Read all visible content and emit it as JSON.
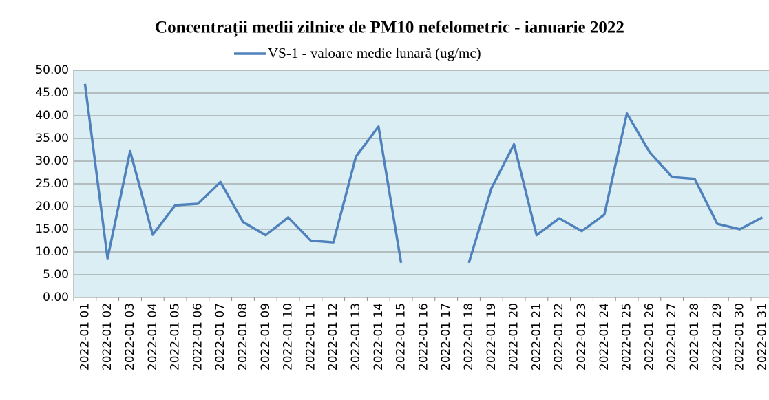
{
  "chart_data": {
    "type": "line",
    "title": "Concentrații  medii zilnice de PM10 nefelometric - ianuarie 2022",
    "categories": [
      "2022-01 01",
      "2022-01 02",
      "2022-01 03",
      "2022-01 04",
      "2022-01 05",
      "2022-01 06",
      "2022-01 07",
      "2022-01 08",
      "2022-01 09",
      "2022-01 10",
      "2022-01 11",
      "2022-01 12",
      "2022-01 13",
      "2022-01 14",
      "2022-01 15",
      "2022-01 16",
      "2022-01 17",
      "2022-01 18",
      "2022-01 19",
      "2022-01 20",
      "2022-01 21",
      "2022-01 22",
      "2022-01 23",
      "2022-01 24",
      "2022-01 25",
      "2022-01 26",
      "2022-01 27",
      "2022-01 28",
      "2022-01 29",
      "2022-01 30",
      "2022-01 31"
    ],
    "series": [
      {
        "name": "VS-1 - valoare medie lunară (ug/mc)",
        "color": "#4f81bd",
        "values": [
          47.0,
          8.6,
          32.2,
          13.8,
          20.3,
          20.6,
          25.4,
          16.6,
          13.7,
          17.6,
          12.5,
          12.1,
          31.0,
          37.6,
          7.6,
          null,
          null,
          7.6,
          24.0,
          33.7,
          13.7,
          17.4,
          14.6,
          18.2,
          40.5,
          32.0,
          26.5,
          26.1,
          16.2,
          15.0,
          17.6
        ]
      }
    ],
    "ylim": [
      0,
      50
    ],
    "yticks": [
      {
        "value": 0,
        "label": "0.00"
      },
      {
        "value": 5,
        "label": "5.00"
      },
      {
        "value": 10,
        "label": "10.00"
      },
      {
        "value": 15,
        "label": "15.00"
      },
      {
        "value": 20,
        "label": "20.00"
      },
      {
        "value": 25,
        "label": "25.00"
      },
      {
        "value": 30,
        "label": "30.00"
      },
      {
        "value": 35,
        "label": "35.00"
      },
      {
        "value": 40,
        "label": "40.00"
      },
      {
        "value": 45,
        "label": "45.00"
      },
      {
        "value": 50,
        "label": "50.00"
      }
    ],
    "grid": true,
    "legend": "top"
  }
}
